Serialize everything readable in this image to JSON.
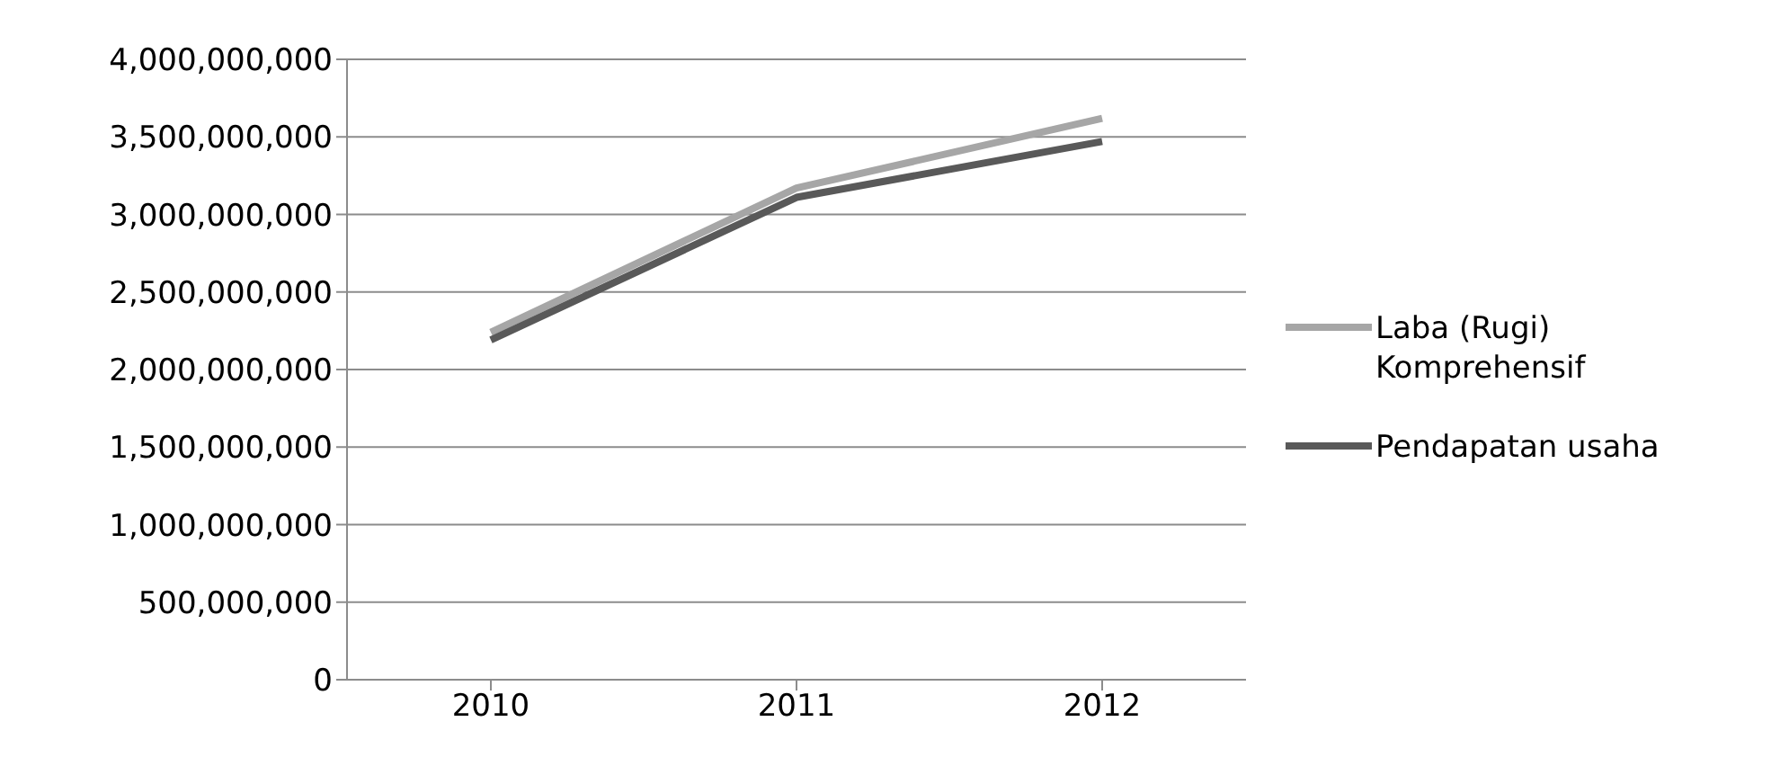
{
  "chart_data": {
    "type": "line",
    "categories": [
      "2010",
      "2011",
      "2012"
    ],
    "series": [
      {
        "name": "Laba (Rugi) Komprehensif",
        "color": "#a6a6a6",
        "values": [
          2240000000,
          3170000000,
          3620000000
        ]
      },
      {
        "name": "Pendapatan usaha",
        "color": "#595959",
        "values": [
          2190000000,
          3110000000,
          3470000000
        ]
      }
    ],
    "ylim": [
      0,
      4000000000
    ],
    "yticks": [
      0,
      {
        "value": 500000000,
        "label": "500,000,000"
      },
      {
        "value": 1000000000,
        "label": "1,000,000,000"
      },
      {
        "value": 1500000000,
        "label": "1,500,000,000"
      },
      {
        "value": 2000000000,
        "label": "2,000,000,000"
      },
      {
        "value": 2500000000,
        "label": "2,500,000,000"
      },
      {
        "value": 3000000000,
        "label": "3,000,000,000"
      },
      {
        "value": 3500000000,
        "label": "3,500,000,000"
      },
      {
        "value": 4000000000,
        "label": "4,000,000,000"
      }
    ],
    "grid": "y",
    "legend": "right",
    "marker": "none",
    "line_style": "solid"
  }
}
